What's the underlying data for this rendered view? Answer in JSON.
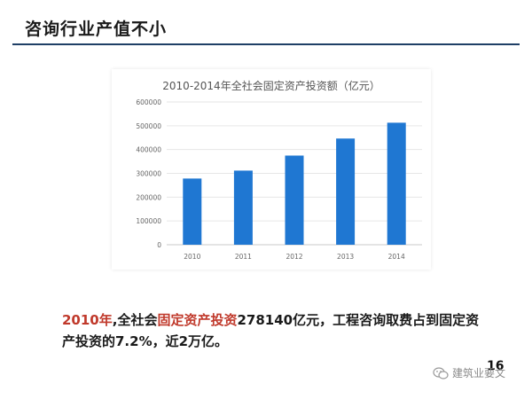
{
  "slide": {
    "title": "咨询行业产值不小",
    "page_number": "16"
  },
  "body": {
    "year": "2010年",
    "seg1": ",全社会",
    "highlight": "固定资产投资",
    "seg2": "278140亿元，工程咨询取费占到固定资产投资的7.2%，近2万亿。"
  },
  "watermark": {
    "text": "建筑业要文"
  },
  "colors": {
    "bar": "#1f77d2",
    "highlight": "#c0392b",
    "title_rule": "#1f3f66"
  },
  "chart_data": {
    "type": "bar",
    "title": "2010-2014年全社会固定资产投资额（亿元）",
    "categories": [
      "2010",
      "2011",
      "2012",
      "2013",
      "2014"
    ],
    "values": [
      278140,
      311485,
      374695,
      446294,
      512761
    ],
    "ylim": [
      0,
      600000
    ],
    "yticks": [
      0,
      100000,
      200000,
      300000,
      400000,
      500000,
      600000
    ],
    "ytick_labels": [
      "0",
      "100000",
      "200000",
      "300000",
      "400000",
      "500000",
      "600000"
    ],
    "xlabel": "",
    "ylabel": "",
    "grid": true
  }
}
